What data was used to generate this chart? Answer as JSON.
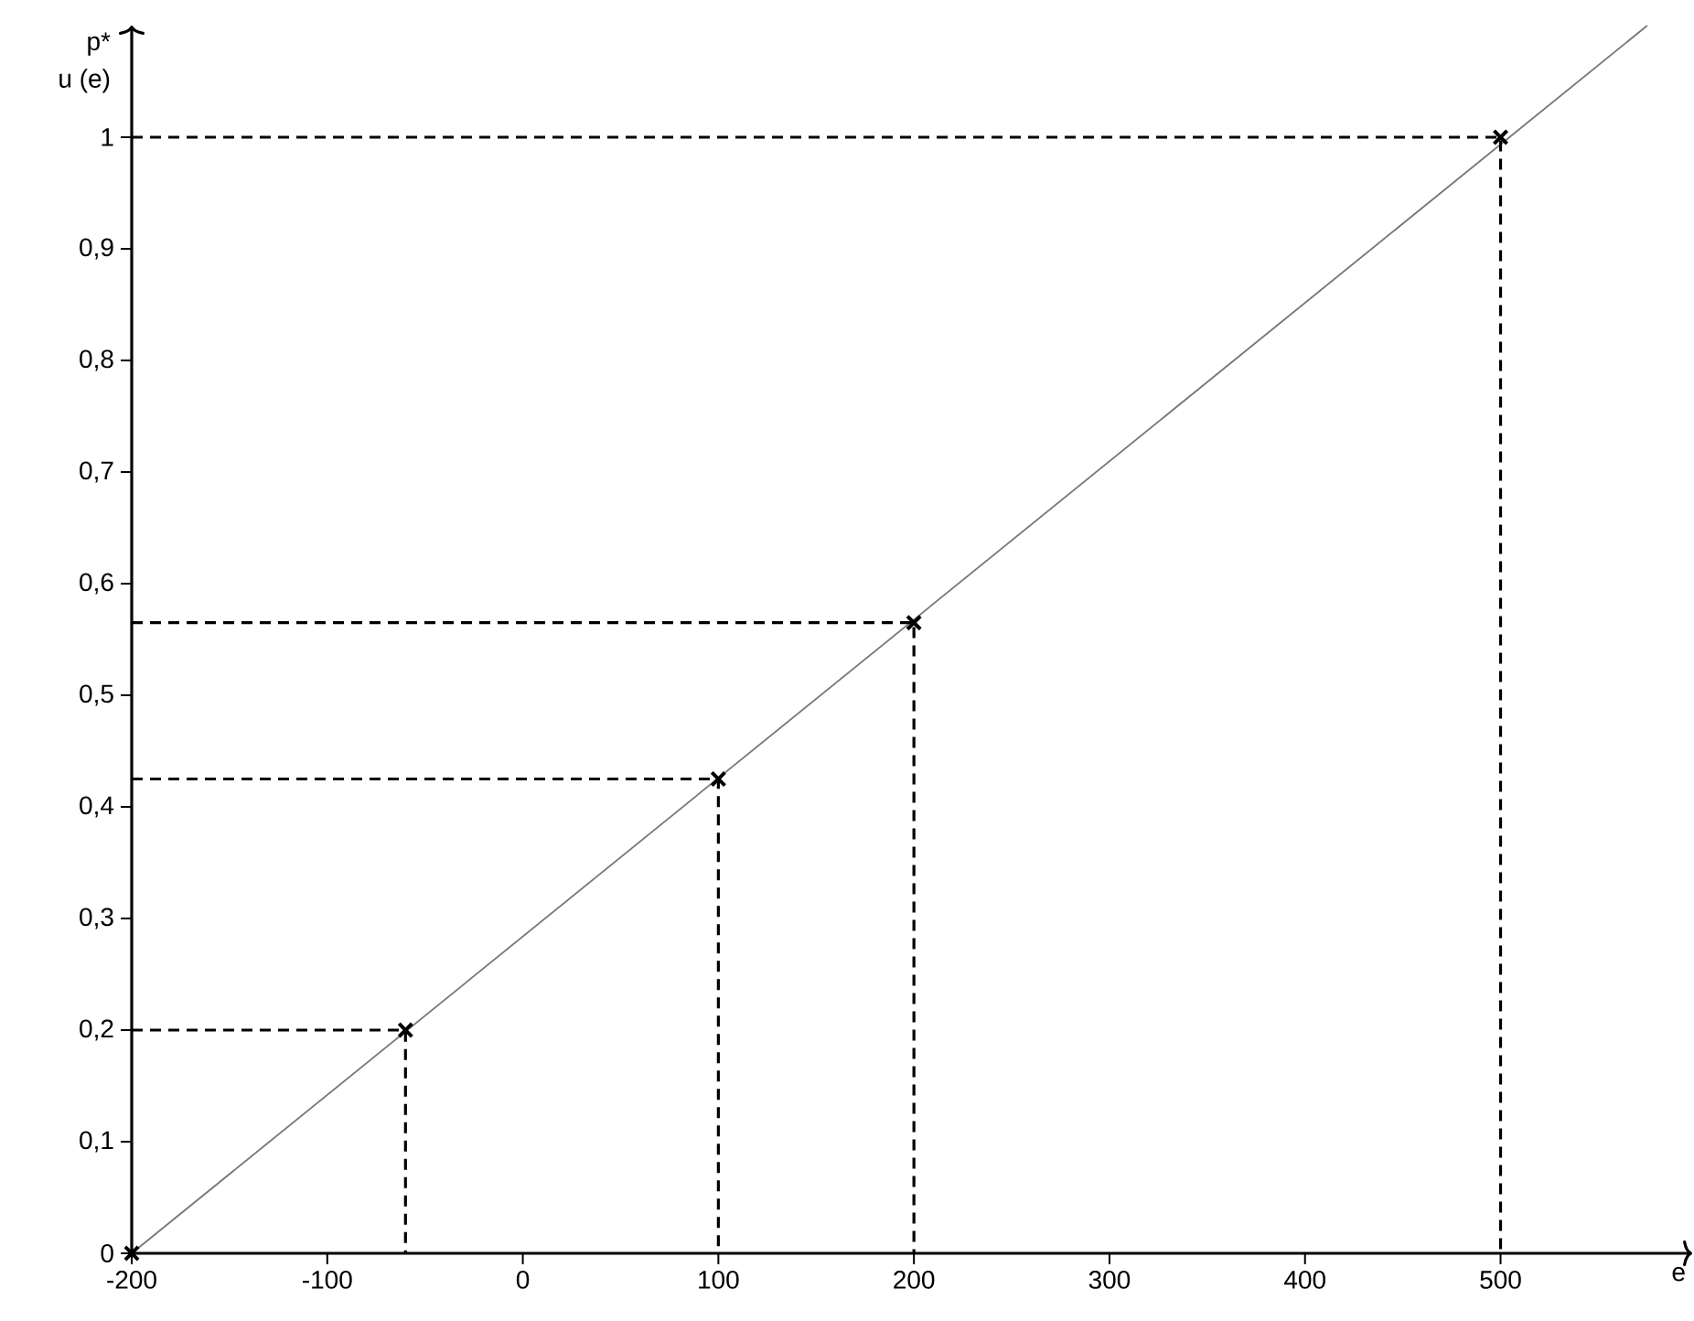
{
  "chart_data": {
    "type": "line",
    "xlabel": "e",
    "ylabel": "u (e)",
    "annotations": [
      "p*"
    ],
    "xlim": [
      -200,
      598
    ],
    "ylim": [
      0,
      1.1
    ],
    "xticks": [
      -200,
      -100,
      0,
      100,
      200,
      300,
      400,
      500
    ],
    "yticks": [
      0,
      {
        "value": 0.1,
        "label": "0,1"
      },
      {
        "value": 0.2,
        "label": "0,2"
      },
      {
        "value": 0.3,
        "label": "0,3"
      },
      {
        "value": 0.4,
        "label": "0,4"
      },
      {
        "value": 0.5,
        "label": "0,5"
      },
      {
        "value": 0.6,
        "label": "0,6"
      },
      {
        "value": 0.7,
        "label": "0,7"
      },
      {
        "value": 0.8,
        "label": "0,8"
      },
      {
        "value": 0.9,
        "label": "0,9"
      },
      1
    ],
    "series": [
      {
        "line_style": "solid",
        "color": "#777777",
        "x": [
          -200,
          575
        ],
        "values": [
          0,
          1.1
        ]
      },
      {
        "type": "line",
        "line_style": "dashed",
        "color": "#000000",
        "x": [
          -200,
          -60,
          -60
        ],
        "values": [
          0.2,
          0.2,
          0
        ]
      },
      {
        "type": "line",
        "line_style": "dashed",
        "color": "#000000",
        "x": [
          -200,
          100,
          100
        ],
        "values": [
          0.425,
          0.425,
          0
        ]
      },
      {
        "type": "line",
        "line_style": "dashed",
        "color": "#000000",
        "x": [
          -200,
          200,
          200
        ],
        "values": [
          0.565,
          0.565,
          0
        ]
      },
      {
        "type": "line",
        "line_style": "dashed",
        "color": "#000000",
        "x": [
          -200,
          500,
          500
        ],
        "values": [
          1,
          1,
          0
        ]
      },
      {
        "type": "scatter",
        "marker": "cross",
        "color": "#000000",
        "x": [
          -200,
          -60,
          100,
          200,
          500
        ],
        "values": [
          0,
          0.2,
          0.425,
          0.565,
          1
        ]
      }
    ]
  }
}
